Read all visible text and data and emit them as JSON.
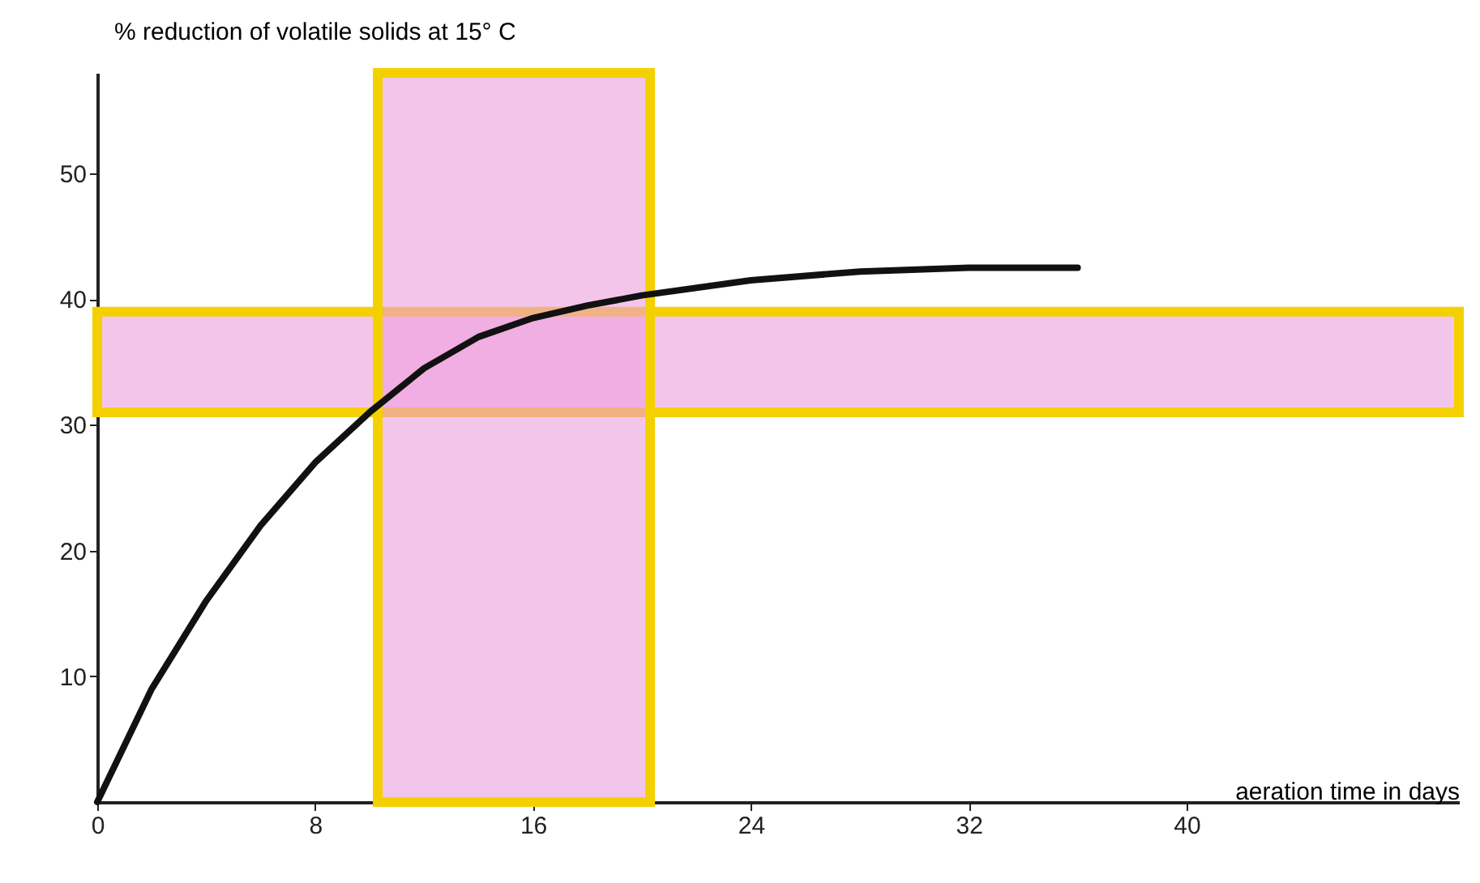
{
  "chart_data": {
    "type": "line",
    "xlabel": "aeration time in days",
    "ylabel": "% reduction of volatile solids at 15° C",
    "x": [
      0,
      2,
      4,
      6,
      8,
      10,
      12,
      14,
      16,
      18,
      20,
      24,
      28,
      32,
      36
    ],
    "series": [
      {
        "color": "#111111",
        "values": [
          0,
          9,
          16,
          22,
          27,
          31,
          34.5,
          37,
          38.5,
          39.5,
          40.3,
          41.5,
          42.2,
          42.5,
          42.5
        ]
      }
    ],
    "bands": [
      {
        "axis": "y",
        "from": 31,
        "to": 39,
        "color": "#ec9fdc"
      },
      {
        "axis": "x",
        "from": 10.3,
        "to": 20.3,
        "color": "#ec9fdc"
      }
    ],
    "xlim": [
      0,
      50
    ],
    "xticks": [
      0,
      8,
      16,
      24,
      32,
      40
    ],
    "ylim": [
      0,
      58
    ],
    "yticks": [
      10,
      20,
      30,
      40,
      50
    ]
  }
}
